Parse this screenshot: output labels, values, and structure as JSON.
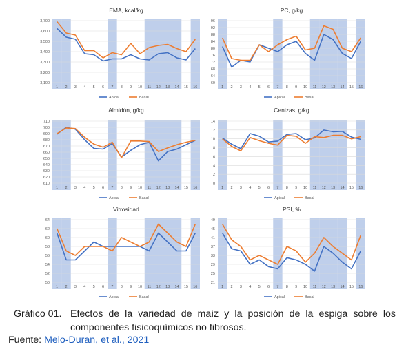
{
  "colors": {
    "apical": "#4472c4",
    "basal": "#ed7d31",
    "shade": "#b4c7e7",
    "grid": "#d9d9d9",
    "axis_text": "#595959"
  },
  "legend": {
    "apical": "Apical",
    "basal": "Basal"
  },
  "chart_data": [
    {
      "type": "line",
      "title": "EMA, kcal/kg",
      "x": [
        "1",
        "2",
        "3",
        "4",
        "5",
        "6",
        "7",
        "8",
        "9",
        "10",
        "11",
        "12",
        "13",
        "14",
        "15",
        "16"
      ],
      "ylim": [
        3100,
        3700
      ],
      "yticks": [
        3100,
        3200,
        3300,
        3400,
        3500,
        3600,
        3700
      ],
      "tick_labels": [
        "3,100",
        "3,200",
        "3,300",
        "3,400",
        "3,500",
        "3,600",
        "3,700"
      ],
      "shaded_x": [
        "1",
        "2",
        "7",
        "11",
        "12",
        "13",
        "14",
        "16"
      ],
      "grid": true,
      "legend": "bottom",
      "series": [
        {
          "name": "Apical",
          "values": [
            3625,
            3540,
            3520,
            3380,
            3370,
            3310,
            3330,
            3330,
            3370,
            3330,
            3320,
            3380,
            3390,
            3340,
            3320,
            3430
          ]
        },
        {
          "name": "Basal",
          "values": [
            3690,
            3580,
            3560,
            3410,
            3410,
            3340,
            3390,
            3370,
            3480,
            3380,
            3440,
            3460,
            3470,
            3430,
            3400,
            3520
          ]
        }
      ]
    },
    {
      "type": "line",
      "title": "PC, g/kg",
      "x": [
        "1",
        "2",
        "3",
        "4",
        "5",
        "6",
        "7",
        "8",
        "9",
        "10",
        "11",
        "12",
        "13",
        "14",
        "15",
        "16"
      ],
      "ylim": [
        60,
        96
      ],
      "yticks": [
        60,
        64,
        68,
        72,
        76,
        80,
        84,
        88,
        92,
        96
      ],
      "tick_labels": [
        "60",
        "64",
        "68",
        "72",
        "76",
        "80",
        "84",
        "88",
        "92",
        "96"
      ],
      "shaded_x": [
        "1",
        "7",
        "11",
        "12",
        "13",
        "14",
        "16"
      ],
      "grid": true,
      "legend": "bottom",
      "series": [
        {
          "name": "Apical",
          "values": [
            81,
            69,
            73,
            72,
            82,
            80,
            78,
            82,
            84,
            77,
            73,
            88,
            85,
            77,
            74,
            84
          ]
        },
        {
          "name": "Basal",
          "values": [
            86,
            74,
            73,
            73,
            82,
            78,
            82,
            85,
            87,
            79,
            80,
            93,
            91,
            80,
            78,
            86
          ]
        }
      ]
    },
    {
      "type": "line",
      "title": "Almidón, g/kg",
      "x": [
        "1",
        "2",
        "3",
        "4",
        "5",
        "6",
        "7",
        "8",
        "9",
        "10",
        "11",
        "12",
        "13",
        "14",
        "15",
        "16"
      ],
      "ylim": [
        610,
        710
      ],
      "yticks": [
        610,
        620,
        630,
        640,
        650,
        660,
        670,
        680,
        690,
        700,
        710
      ],
      "tick_labels": [
        "610",
        "620",
        "630",
        "640",
        "650",
        "660",
        "670",
        "680",
        "690",
        "700",
        "710"
      ],
      "shaded_x": [
        "1",
        "2",
        "7",
        "11",
        "12",
        "13",
        "14",
        "16"
      ],
      "grid": true,
      "legend": "bottom",
      "series": [
        {
          "name": "Apical",
          "values": [
            689,
            700,
            697,
            680,
            666,
            665,
            674,
            652,
            663,
            672,
            676,
            646,
            661,
            665,
            672,
            679
          ]
        },
        {
          "name": "Basal",
          "values": [
            690,
            699,
            698,
            684,
            673,
            668,
            676,
            651,
            678,
            678,
            677,
            661,
            667,
            672,
            676,
            679
          ]
        }
      ]
    },
    {
      "type": "line",
      "title": "Cenizas, g/kg",
      "x": [
        "1",
        "2",
        "3",
        "4",
        "5",
        "6",
        "7",
        "8",
        "9",
        "10",
        "11",
        "12",
        "13",
        "14",
        "15",
        "16"
      ],
      "ylim": [
        0,
        14
      ],
      "yticks": [
        0,
        2,
        4,
        6,
        8,
        10,
        12,
        14
      ],
      "tick_labels": [
        "0",
        "2",
        "4",
        "6",
        "8",
        "10",
        "12",
        "14"
      ],
      "shaded_x": [
        "1",
        "7",
        "11",
        "12",
        "13",
        "14",
        "16"
      ],
      "grid": true,
      "legend": "bottom",
      "series": [
        {
          "name": "Apical",
          "values": [
            10.2,
            8.8,
            7.8,
            11.2,
            10.6,
            9.3,
            9.5,
            11.0,
            11.2,
            9.8,
            10.2,
            12.0,
            11.6,
            11.7,
            10.4,
            9.9
          ]
        },
        {
          "name": "Basal",
          "values": [
            10.0,
            8.3,
            7.3,
            10.3,
            9.6,
            9.0,
            8.6,
            10.8,
            10.6,
            9.0,
            10.5,
            10.3,
            10.8,
            10.8,
            10.0,
            10.5
          ]
        }
      ]
    },
    {
      "type": "line",
      "title": "Vitrosidad",
      "x": [
        "1",
        "2",
        "3",
        "4",
        "5",
        "6",
        "7",
        "8",
        "9",
        "10",
        "11",
        "12",
        "13",
        "14",
        "15",
        "16"
      ],
      "ylim": [
        50,
        64
      ],
      "yticks": [
        50,
        52,
        54,
        56,
        58,
        60,
        62,
        64
      ],
      "tick_labels": [
        "50",
        "52",
        "54",
        "56",
        "58",
        "60",
        "62",
        "64"
      ],
      "shaded_x": [
        "1",
        "2",
        "7",
        "11",
        "12",
        "13",
        "14",
        "16"
      ],
      "grid": true,
      "legend": "bottom",
      "series": [
        {
          "name": "Apical",
          "values": [
            61,
            55,
            55,
            57,
            59,
            58,
            58,
            58,
            58,
            58,
            57,
            61,
            59,
            57,
            57,
            61
          ]
        },
        {
          "name": "Basal",
          "values": [
            62,
            57,
            56,
            58,
            58,
            58,
            57,
            60,
            59,
            58,
            59,
            63,
            61,
            59,
            58,
            63
          ]
        }
      ]
    },
    {
      "type": "line",
      "title": "PSI, %",
      "x": [
        "1",
        "2",
        "3",
        "4",
        "5",
        "6",
        "7",
        "8",
        "9",
        "10",
        "11",
        "12",
        "13",
        "14",
        "15",
        "16"
      ],
      "ylim": [
        21,
        49
      ],
      "yticks": [
        21,
        25,
        29,
        33,
        37,
        41,
        45,
        49
      ],
      "tick_labels": [
        "21",
        "25",
        "29",
        "33",
        "37",
        "41",
        "45",
        "49"
      ],
      "shaded_x": [
        "1",
        "7",
        "11",
        "12",
        "13",
        "14",
        "16"
      ],
      "grid": true,
      "legend": "bottom",
      "series": [
        {
          "name": "Apical",
          "values": [
            43,
            36,
            35,
            29,
            31,
            28,
            27,
            32,
            31,
            29,
            26,
            37,
            34,
            30,
            27,
            35
          ]
        },
        {
          "name": "Basal",
          "values": [
            47,
            40,
            37,
            31,
            33,
            31,
            29,
            37,
            35,
            30,
            34,
            41,
            37,
            34,
            31,
            42
          ]
        }
      ]
    }
  ],
  "caption": {
    "label": "Gráfico 01.",
    "text": "Efectos de la variedad de maíz y la posición de la espiga sobre los componentes fisicoquímicos no fibrosos."
  },
  "source": {
    "prefix": "Fuente: ",
    "link_text": "Melo-Duran, et al., 2021"
  }
}
